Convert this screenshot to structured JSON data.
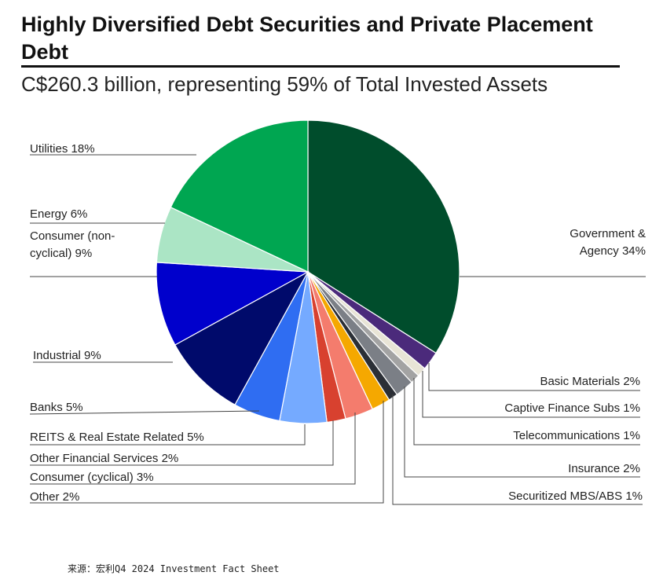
{
  "chart_data": {
    "type": "pie",
    "title": "Highly Diversified Debt Securities and Private Placement Debt",
    "subtitle": "C$260.3 billion, representing 59% of Total Invested Assets",
    "unit": "%",
    "slices": [
      {
        "id": "gov",
        "label_lines": [
          "Government &",
          "Agency 34%"
        ],
        "value": 34,
        "color": "#004d2c"
      },
      {
        "id": "basic",
        "label_lines": [
          "Basic Materials 2%"
        ],
        "value": 2,
        "color": "#4b2a7b"
      },
      {
        "id": "captive",
        "label_lines": [
          "Captive Finance Subs 1%"
        ],
        "value": 1,
        "color": "#e8e4d6"
      },
      {
        "id": "telecom",
        "label_lines": [
          "Telecommunications 1%"
        ],
        "value": 1,
        "color": "#a3a3a3"
      },
      {
        "id": "insurance",
        "label_lines": [
          "Insurance 2%"
        ],
        "value": 2,
        "color": "#7b7f86"
      },
      {
        "id": "mbs",
        "label_lines": [
          "Securitized MBS/ABS 1%"
        ],
        "value": 1,
        "color": "#2b2f36"
      },
      {
        "id": "other",
        "label_lines": [
          "Other 2%"
        ],
        "value": 2,
        "color": "#f5a800"
      },
      {
        "id": "cyclical",
        "label_lines": [
          "Consumer (cyclical) 3%"
        ],
        "value": 3,
        "color": "#f47c6d"
      },
      {
        "id": "otherfin",
        "label_lines": [
          "Other Financial Services 2%"
        ],
        "value": 2,
        "color": "#d8412f"
      },
      {
        "id": "reits",
        "label_lines": [
          "REITS & Real Estate Related 5%"
        ],
        "value": 5,
        "color": "#75aaff"
      },
      {
        "id": "banks",
        "label_lines": [
          "Banks 5%"
        ],
        "value": 5,
        "color": "#2f6df2"
      },
      {
        "id": "industrial",
        "label_lines": [
          "Industrial  9%"
        ],
        "value": 9,
        "color": "#000a6b"
      },
      {
        "id": "noncyclical",
        "label_lines": [
          "Consumer (non-",
          "cyclical) 9%"
        ],
        "value": 9,
        "color": "#0000cc"
      },
      {
        "id": "energy",
        "label_lines": [
          "Energy 6%"
        ],
        "value": 6,
        "color": "#abe5c5"
      },
      {
        "id": "utilities",
        "label_lines": [
          "Utilities 18%"
        ],
        "value": 18,
        "color": "#00a651"
      }
    ]
  },
  "source": "来源：宏利Q4 2024 Investment Fact Sheet"
}
